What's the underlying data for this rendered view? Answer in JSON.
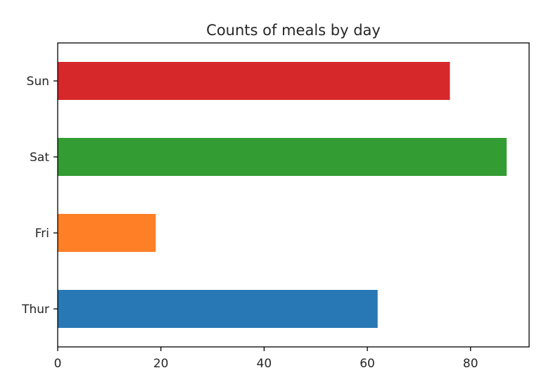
{
  "chart_data": {
    "type": "bar",
    "orientation": "horizontal",
    "title": "Counts of meals by day",
    "xlabel": "",
    "ylabel": "",
    "categories": [
      "Thur",
      "Fri",
      "Sat",
      "Sun"
    ],
    "values": [
      62,
      19,
      87,
      76
    ],
    "colors": [
      "#2878b5",
      "#ff7f27",
      "#339c33",
      "#d6282b"
    ],
    "xlim": [
      0,
      91.35
    ],
    "xticks": [
      0,
      20,
      40,
      60,
      80
    ],
    "grid": false,
    "legend": "none"
  }
}
